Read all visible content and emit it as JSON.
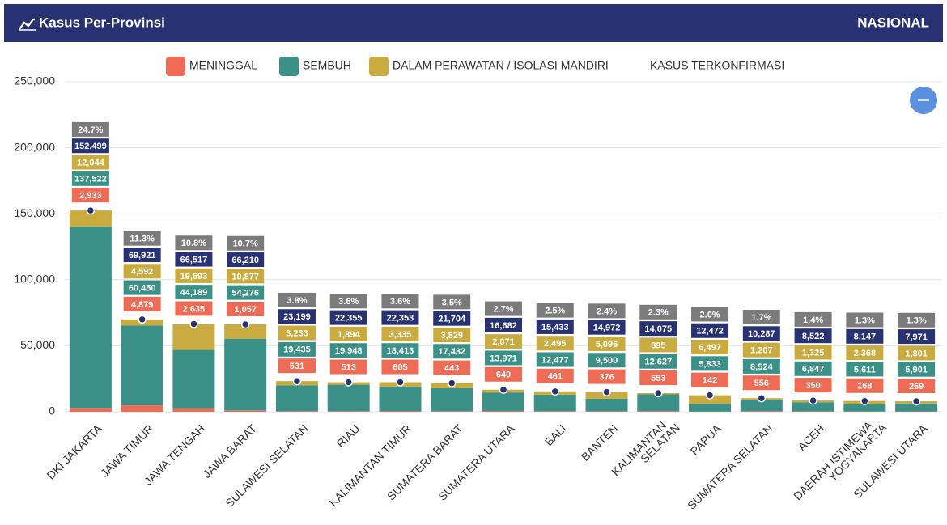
{
  "header": {
    "title": "Kasus Per-Provinsi",
    "scope": "NASIONAL"
  },
  "chart_data": {
    "type": "stacked-bar",
    "categories": [
      "DKI JAKARTA",
      "JAWA TIMUR",
      "JAWA TENGAH",
      "JAWA BARAT",
      "SULAWESI SELATAN",
      "RIAU",
      "KALIMANTAN TIMUR",
      "SUMATERA BARAT",
      "SUMATERA UTARA",
      "BALI",
      "BANTEN",
      "KALIMANTAN SELATAN",
      "PAPUA",
      "SUMATERA SELATAN",
      "ACEH",
      "DAERAH ISTIMEWA YOGYAKARTA",
      "SULAWESI UTARA"
    ],
    "series": [
      {
        "name": "MENINGGAL",
        "color": "#ee6c55",
        "values": [
          2933,
          4879,
          2635,
          1057,
          531,
          513,
          605,
          443,
          640,
          461,
          376,
          553,
          142,
          556,
          350,
          168,
          269
        ],
        "value_labels": [
          "2,933",
          "4,879",
          "2,635",
          "1,057",
          "531",
          "513",
          "605",
          "443",
          "640",
          "461",
          "376",
          "553",
          "142",
          "556",
          "350",
          "168",
          "269"
        ]
      },
      {
        "name": "SEMBUH",
        "color": "#3b9187",
        "values": [
          137522,
          60450,
          44189,
          54276,
          19435,
          19948,
          18413,
          17432,
          13971,
          12477,
          9500,
          12627,
          5833,
          8524,
          6847,
          5611,
          5901
        ],
        "value_labels": [
          "137,522",
          "60,450",
          "44,189",
          "54,276",
          "19,435",
          "19,948",
          "18,413",
          "17,432",
          "13,971",
          "12,477",
          "9,500",
          "12,627",
          "5,833",
          "8,524",
          "6,847",
          "5,611",
          "5,901"
        ]
      },
      {
        "name": "DALAM PERAWATAN / ISOLASI MANDIRI",
        "color": "#c9ab3f",
        "values": [
          12044,
          4592,
          19693,
          10877,
          3233,
          1894,
          3335,
          3829,
          2071,
          2495,
          5096,
          895,
          6497,
          1207,
          1325,
          2368,
          1801
        ],
        "value_labels": [
          "12,044",
          "4,592",
          "19,693",
          "10,877",
          "3,233",
          "1,894",
          "3,335",
          "3,829",
          "2,071",
          "2,495",
          "5,096",
          "895",
          "6,497",
          "1,207",
          "1,325",
          "2,368",
          "1,801"
        ]
      },
      {
        "name": "KASUS TERKONFIRMASI",
        "color": "#283273",
        "type": "point",
        "values": [
          152499,
          69921,
          66517,
          66210,
          23199,
          22355,
          22353,
          21704,
          16682,
          15433,
          14972,
          14075,
          12472,
          10287,
          8522,
          8147,
          7971
        ],
        "value_labels": [
          "152,499",
          "69,921",
          "66,517",
          "66,210",
          "23,199",
          "22,355",
          "22,353",
          "21,704",
          "16,682",
          "15,433",
          "14,972",
          "14,075",
          "12,472",
          "10,287",
          "8,522",
          "8,147",
          "7,971"
        ]
      }
    ],
    "share": {
      "color": "#7b7b7b",
      "values": [
        24.7,
        11.3,
        10.8,
        10.7,
        3.8,
        3.6,
        3.6,
        3.5,
        2.7,
        2.5,
        2.4,
        2.3,
        2.0,
        1.7,
        1.4,
        1.3,
        1.3
      ],
      "value_labels": [
        "24.7%",
        "11.3%",
        "10.8%",
        "10.7%",
        "3.8%",
        "3.6%",
        "3.6%",
        "3.5%",
        "2.7%",
        "2.5%",
        "2.4%",
        "2.3%",
        "2.0%",
        "1.7%",
        "1.4%",
        "1.3%",
        "1.3%"
      ]
    },
    "ylim": [
      0,
      250000
    ],
    "yticks": [
      0,
      {
        "value": 50000,
        "label": "50,000"
      },
      {
        "value": 100000,
        "label": "100,000"
      },
      {
        "value": 150000,
        "label": "150,000"
      },
      {
        "value": 200000,
        "label": "200,000"
      },
      {
        "value": 250000,
        "label": "250,000"
      }
    ],
    "grid": true
  }
}
